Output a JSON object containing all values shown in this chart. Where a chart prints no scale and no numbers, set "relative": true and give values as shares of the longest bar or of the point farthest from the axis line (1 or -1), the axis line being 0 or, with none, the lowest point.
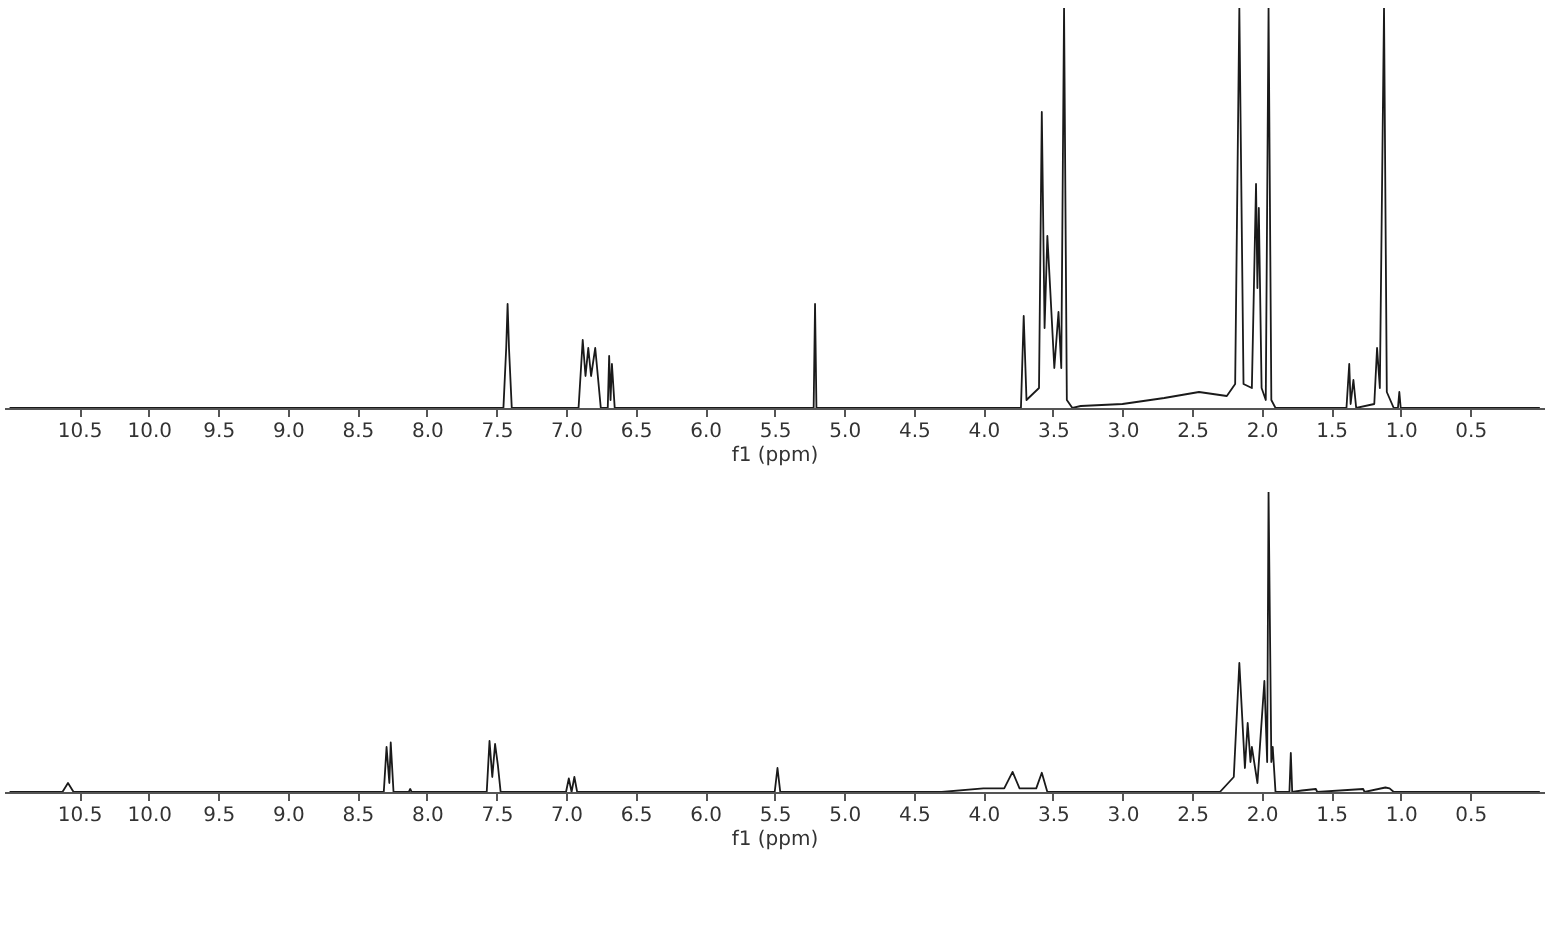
{
  "chart_data": [
    {
      "type": "line",
      "relative": true,
      "xlabel": "f1 (ppm)",
      "tick_labels": "x",
      "xlim": [
        11.04,
        -0.03
      ],
      "xticks": [
        {
          "value": 10.5,
          "label": "10.5"
        },
        {
          "value": 10,
          "label": "10.0"
        },
        {
          "value": 9.5,
          "label": "9.5"
        },
        {
          "value": 9,
          "label": "9.0"
        },
        {
          "value": 8.5,
          "label": "8.5"
        },
        {
          "value": 8,
          "label": "8.0"
        },
        {
          "value": 7.5,
          "label": "7.5"
        },
        {
          "value": 7,
          "label": "7.0"
        },
        {
          "value": 6.5,
          "label": "6.5"
        },
        {
          "value": 6,
          "label": "6.0"
        },
        {
          "value": 5.5,
          "label": "5.5"
        },
        {
          "value": 5,
          "label": "5.0"
        },
        {
          "value": 4.5,
          "label": "4.5"
        },
        {
          "value": 4,
          "label": "4.0"
        },
        {
          "value": 3.5,
          "label": "3.5"
        },
        {
          "value": 3,
          "label": "3.0"
        },
        {
          "value": 2.5,
          "label": "2.5"
        },
        {
          "value": 2,
          "label": "2.0"
        },
        {
          "value": 1.5,
          "label": "1.5"
        },
        {
          "value": 1,
          "label": "1.0"
        },
        {
          "value": 0.5,
          "label": "0.5"
        }
      ],
      "series": [
        {
          "color": "#1a1a1a",
          "x": [
            11.0,
            7.45,
            7.43,
            7.42,
            7.41,
            7.39,
            6.91,
            6.88,
            6.86,
            6.84,
            6.82,
            6.79,
            6.75,
            6.7,
            6.69,
            6.68,
            6.67,
            6.65,
            5.22,
            5.21,
            5.2,
            3.73,
            3.71,
            3.69,
            3.6,
            3.58,
            3.56,
            3.54,
            3.52,
            3.49,
            3.46,
            3.44,
            3.42,
            3.4,
            3.36,
            3.3,
            3.0,
            2.7,
            2.45,
            2.25,
            2.19,
            2.16,
            2.13,
            2.07,
            2.04,
            2.03,
            2.02,
            2.0,
            1.97,
            1.95,
            1.93,
            1.9,
            1.39,
            1.37,
            1.36,
            1.34,
            1.32,
            1.19,
            1.17,
            1.15,
            1.12,
            1.1,
            1.05,
            1.02,
            1.01,
            1.0,
            0.0
          ],
          "values": [
            0,
            0,
            0.15,
            0.26,
            0.15,
            0,
            0,
            0.17,
            0.08,
            0.15,
            0.08,
            0.15,
            0,
            0,
            0.13,
            0.02,
            0.11,
            0,
            0,
            0.26,
            0,
            0,
            0.23,
            0.02,
            0.05,
            0.74,
            0.2,
            0.43,
            0.3,
            0.1,
            0.24,
            0.1,
            1,
            0.02,
            0,
            0.005,
            0.01,
            0.025,
            0.04,
            0.03,
            0.06,
            1,
            0.06,
            0.05,
            0.56,
            0.3,
            0.5,
            0.05,
            0.02,
            1,
            0.02,
            0,
            0,
            0.11,
            0.01,
            0.07,
            0,
            0.01,
            0.15,
            0.05,
            1,
            0.04,
            0,
            0,
            0.04,
            0,
            0
          ]
        }
      ]
    },
    {
      "type": "line",
      "relative": true,
      "xlabel": "f1 (ppm)",
      "tick_labels": "x",
      "xlim": [
        11.04,
        -0.03
      ],
      "xticks": [
        {
          "value": 10.5,
          "label": "10.5"
        },
        {
          "value": 10,
          "label": "10.0"
        },
        {
          "value": 9.5,
          "label": "9.5"
        },
        {
          "value": 9,
          "label": "9.0"
        },
        {
          "value": 8.5,
          "label": "8.5"
        },
        {
          "value": 8,
          "label": "8.0"
        },
        {
          "value": 7.5,
          "label": "7.5"
        },
        {
          "value": 7,
          "label": "7.0"
        },
        {
          "value": 6.5,
          "label": "6.5"
        },
        {
          "value": 6,
          "label": "6.0"
        },
        {
          "value": 5.5,
          "label": "5.5"
        },
        {
          "value": 5,
          "label": "5.0"
        },
        {
          "value": 4.5,
          "label": "4.5"
        },
        {
          "value": 4,
          "label": "4.0"
        },
        {
          "value": 3.5,
          "label": "3.5"
        },
        {
          "value": 3,
          "label": "3.0"
        },
        {
          "value": 2.5,
          "label": "2.5"
        },
        {
          "value": 2,
          "label": "2.0"
        },
        {
          "value": 1.5,
          "label": "1.5"
        },
        {
          "value": 1,
          "label": "1.0"
        },
        {
          "value": 0.5,
          "label": "0.5"
        }
      ],
      "series": [
        {
          "color": "#1a1a1a",
          "x": [
            11.0,
            10.62,
            10.58,
            10.54,
            8.31,
            8.29,
            8.27,
            8.26,
            8.24,
            8.13,
            8.12,
            8.11,
            7.57,
            7.55,
            7.53,
            7.51,
            7.49,
            7.47,
            7.0,
            6.98,
            6.96,
            6.94,
            6.92,
            5.5,
            5.48,
            5.46,
            4.3,
            4.0,
            3.85,
            3.79,
            3.74,
            3.62,
            3.58,
            3.54,
            2.3,
            2.2,
            2.16,
            2.12,
            2.1,
            2.08,
            2.07,
            2.03,
            1.98,
            1.96,
            1.95,
            1.93,
            1.92,
            1.9,
            1.8,
            1.79,
            1.78,
            1.71,
            1.61,
            1.6,
            1.27,
            1.26,
            1.11,
            1.08,
            1.05,
            0.0
          ],
          "values": [
            0,
            0,
            0.03,
            0,
            0,
            0.15,
            0.03,
            0.165,
            0,
            0,
            0.01,
            0,
            0,
            0.17,
            0.05,
            0.16,
            0.09,
            0,
            0,
            0.045,
            0,
            0.05,
            0,
            0,
            0.08,
            0,
            0,
            0.012,
            0.012,
            0.067,
            0.012,
            0.012,
            0.064,
            0,
            0,
            0.05,
            0.43,
            0.08,
            0.23,
            0.1,
            0.15,
            0.03,
            0.37,
            0.1,
            1,
            0.1,
            0.15,
            0,
            0,
            0.13,
            0,
            0.005,
            0.01,
            0,
            0.01,
            0,
            0.015,
            0.012,
            0,
            0
          ]
        }
      ]
    }
  ]
}
